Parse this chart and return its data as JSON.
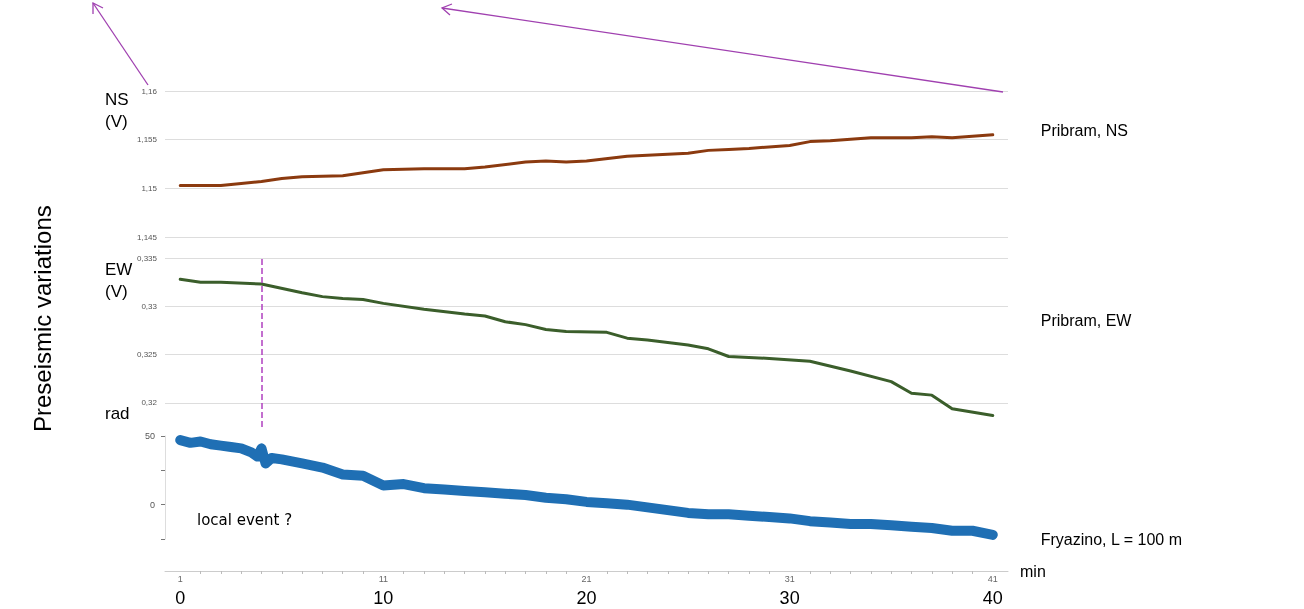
{
  "chart_data": [
    {
      "type": "line",
      "ylabel": "NS\n(V)",
      "x": [
        0,
        1,
        2,
        3,
        4,
        5,
        6,
        8,
        9,
        10,
        12,
        14,
        15,
        17,
        18,
        19,
        20,
        22,
        24,
        25,
        26,
        27,
        28,
        30,
        31,
        32,
        34,
        36,
        37,
        38,
        40
      ],
      "series": [
        {
          "name": "Pribram, NS",
          "color": "#8b3a0f",
          "values": [
            1.1503,
            1.1503,
            1.1503,
            1.1505,
            1.1507,
            1.151,
            1.1512,
            1.1513,
            1.1516,
            1.1519,
            1.152,
            1.152,
            1.1522,
            1.1527,
            1.1528,
            1.1527,
            1.1528,
            1.1533,
            1.1535,
            1.1536,
            1.1539,
            1.154,
            1.1541,
            1.1544,
            1.1548,
            1.1549,
            1.1552,
            1.1552,
            1.1553,
            1.1552,
            1.1555
          ]
        }
      ],
      "xlim": [
        -0.75,
        40.75
      ],
      "ylim": [
        1.145,
        1.16
      ],
      "yticks": [
        {
          "value": 1.145,
          "label": "1,145"
        },
        {
          "value": 1.15,
          "label": "1,15"
        },
        {
          "value": 1.155,
          "label": "1,155"
        },
        {
          "value": 1.16,
          "label": "1,16"
        }
      ],
      "grid": "y",
      "tick_labels": "y",
      "legend": false,
      "marker": "none",
      "line_style": "solid"
    },
    {
      "type": "line",
      "ylabel": "EW\n(V)",
      "annotations": [
        "Preseismic variations"
      ],
      "x": [
        0,
        1,
        2,
        4,
        6,
        7,
        8,
        9,
        10,
        12,
        14,
        15,
        16,
        17,
        18,
        19,
        21,
        22,
        23,
        25,
        26,
        27,
        29,
        31,
        33,
        35,
        36,
        37,
        38,
        40
      ],
      "series": [
        {
          "name": "Pribram, EW",
          "color": "#3b5e2b",
          "values": [
            0.3328,
            0.3325,
            0.3325,
            0.3323,
            0.3314,
            0.331,
            0.3308,
            0.3307,
            0.3303,
            0.3297,
            0.3292,
            0.329,
            0.3284,
            0.3281,
            0.3276,
            0.3274,
            0.3273,
            0.3267,
            0.3265,
            0.326,
            0.3256,
            0.3248,
            0.3246,
            0.3243,
            0.3233,
            0.3222,
            0.321,
            0.3208,
            0.3194,
            0.3187
          ]
        }
      ],
      "xlim": [
        -0.75,
        40.75
      ],
      "ylim": [
        0.3175,
        0.335
      ],
      "yticks": [
        {
          "value": 0.32,
          "label": "0,32"
        },
        {
          "value": 0.325,
          "label": "0,325"
        },
        {
          "value": 0.33,
          "label": "0,33"
        },
        {
          "value": 0.335,
          "label": "0,335"
        }
      ],
      "ref_lines": [
        {
          "axis": "x",
          "value": 4,
          "color": "#b040c0",
          "line_style": "dashed"
        }
      ],
      "grid": "y",
      "tick_labels": "y",
      "legend": false,
      "marker": "none",
      "line_style": "solid"
    },
    {
      "type": "line",
      "ylabel": "rad",
      "xlabel": "min",
      "annotations": [
        "local event ?"
      ],
      "x": [
        0,
        0.5,
        1,
        1.5,
        2,
        2.5,
        3,
        3.5,
        3.8,
        4,
        4.2,
        4.5,
        5,
        6,
        7,
        8,
        9,
        10,
        11,
        12,
        13,
        14,
        15,
        16,
        17,
        18,
        19,
        20,
        21,
        22,
        23,
        24,
        25,
        26,
        27,
        28,
        29,
        30,
        31,
        32,
        33,
        34,
        35,
        36,
        37,
        38,
        39,
        40
      ],
      "series": [
        {
          "name": "Fryazino, L = 100 m",
          "color": "#1f6fb4",
          "values": [
            47,
            45,
            46,
            44,
            43,
            42,
            41,
            38,
            35,
            41,
            30,
            34,
            33,
            30,
            27,
            22,
            21,
            14,
            15,
            12,
            11,
            10,
            9,
            8,
            7,
            5,
            4,
            2,
            1,
            0,
            -2,
            -4,
            -6,
            -7,
            -7,
            -8,
            -9,
            -10,
            -12,
            -13,
            -14,
            -14,
            -15,
            -16,
            -17,
            -19,
            -19,
            -22
          ]
        }
      ],
      "xlim": [
        -0.75,
        40.75
      ],
      "ylim": [
        -25,
        50
      ],
      "xticks": [
        0,
        10,
        20,
        30,
        40
      ],
      "yticks": [
        {
          "value": -25,
          "label": null
        },
        0,
        {
          "value": 25,
          "label": null
        },
        50
      ],
      "x2lim": [
        0.25,
        41.75
      ],
      "x2ticks": [
        1,
        11,
        21,
        31,
        41
      ],
      "grid": false,
      "legend": false,
      "marker": "none",
      "line_style": "solid"
    }
  ]
}
